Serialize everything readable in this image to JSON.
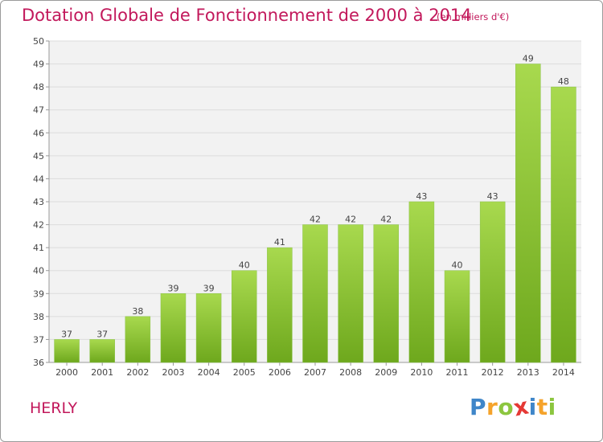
{
  "chart_title": "Dotation Globale de Fonctionnement de 2000 à 2014",
  "chart_unit": "(en milliers d'€)",
  "town_name": "HERLY",
  "brand": {
    "letters": [
      "P",
      "r",
      "o",
      "x",
      "i",
      "t",
      "i"
    ],
    "colors": [
      "#3f86c9",
      "#f5a32b",
      "#8cc63f",
      "#e53935",
      "#3f86c9",
      "#f5a32b",
      "#8cc63f"
    ]
  },
  "colors": {
    "bar_light": "#a8d94e",
    "bar_dark": "#6ea81d",
    "title": "#c2185b",
    "grid": "#dcdcdc",
    "plot_bg": "#f2f2f2"
  },
  "chart_data": {
    "type": "bar",
    "title": "Dotation Globale de Fonctionnement de 2000 à 2014",
    "subtitle": "(en milliers d'€)",
    "xlabel": "",
    "ylabel": "",
    "categories": [
      "2000",
      "2001",
      "2002",
      "2003",
      "2004",
      "2005",
      "2006",
      "2007",
      "2008",
      "2009",
      "2010",
      "2011",
      "2012",
      "2013",
      "2014"
    ],
    "values": [
      37,
      37,
      38,
      39,
      39,
      40,
      41,
      42,
      42,
      42,
      43,
      40,
      43,
      49,
      48
    ],
    "ylim": [
      36,
      50
    ],
    "yticks": [
      36,
      37,
      38,
      39,
      40,
      41,
      42,
      43,
      44,
      45,
      46,
      47,
      48,
      49,
      50
    ],
    "grid": true,
    "data_labels": true
  }
}
